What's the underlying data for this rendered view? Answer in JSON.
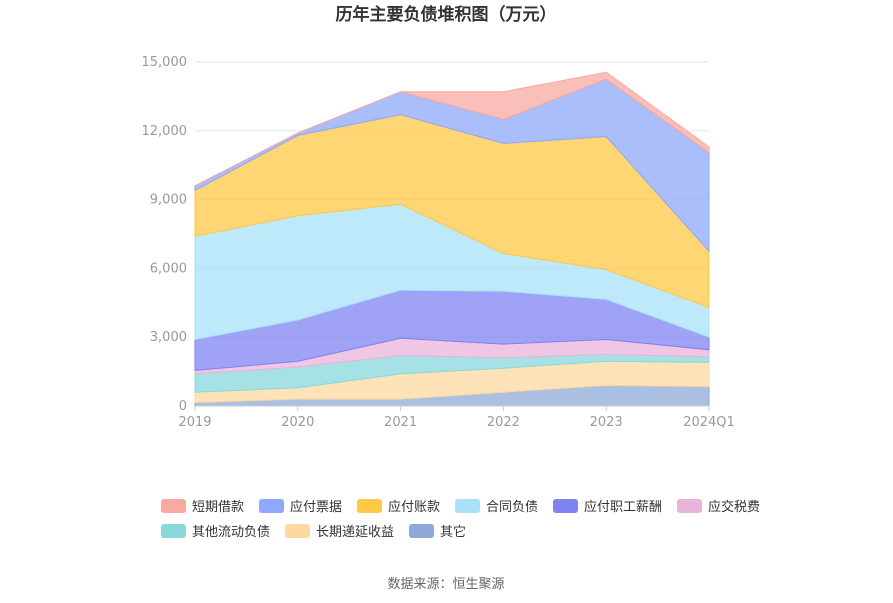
{
  "chart_data": {
    "type": "area",
    "stacked": true,
    "title": "历年主要负债堆积图（万元）",
    "categories": [
      "2019",
      "2020",
      "2021",
      "2022",
      "2023",
      "2024Q1"
    ],
    "ylim": [
      0,
      15000
    ],
    "yticks": [
      "0",
      "3,000",
      "6,000",
      "9,000",
      "12,000",
      "15,000"
    ],
    "grid": true,
    "legend_position": "bottom",
    "series": [
      {
        "name": "其它",
        "color": "#8fa9d8",
        "values": [
          150,
          300,
          300,
          600,
          900,
          850
        ]
      },
      {
        "name": "长期递延收益",
        "color": "#fdd9a0",
        "values": [
          450,
          500,
          1100,
          1050,
          1050,
          1050
        ]
      },
      {
        "name": "其他流动负债",
        "color": "#88d8dc",
        "values": [
          800,
          900,
          800,
          450,
          300,
          250
        ]
      },
      {
        "name": "应交税费",
        "color": "#e9b4dc",
        "values": [
          150,
          250,
          750,
          600,
          650,
          300
        ]
      },
      {
        "name": "应付职工薪酬",
        "color": "#7f83f2",
        "values": [
          1350,
          1800,
          2100,
          2300,
          1750,
          550
        ]
      },
      {
        "name": "合同负债",
        "color": "#a8e1fa",
        "values": [
          4500,
          4550,
          3750,
          1650,
          1300,
          1300
        ]
      },
      {
        "name": "应付账款",
        "color": "#ffc845",
        "values": [
          2000,
          3500,
          3900,
          4800,
          5800,
          2450
        ]
      },
      {
        "name": "应付票据",
        "color": "#8fa8fb",
        "values": [
          200,
          100,
          1000,
          1050,
          2500,
          4300
        ]
      },
      {
        "name": "短期借款",
        "color": "#f9a9a2",
        "values": [
          0,
          0,
          0,
          1200,
          300,
          250
        ]
      }
    ],
    "legend_order": [
      "短期借款",
      "应付票据",
      "应付账款",
      "合同负债",
      "应付职工薪酬",
      "应交税费",
      "其他流动负债",
      "长期递延收益",
      "其它"
    ]
  },
  "source_label": "数据来源：恒生聚源"
}
